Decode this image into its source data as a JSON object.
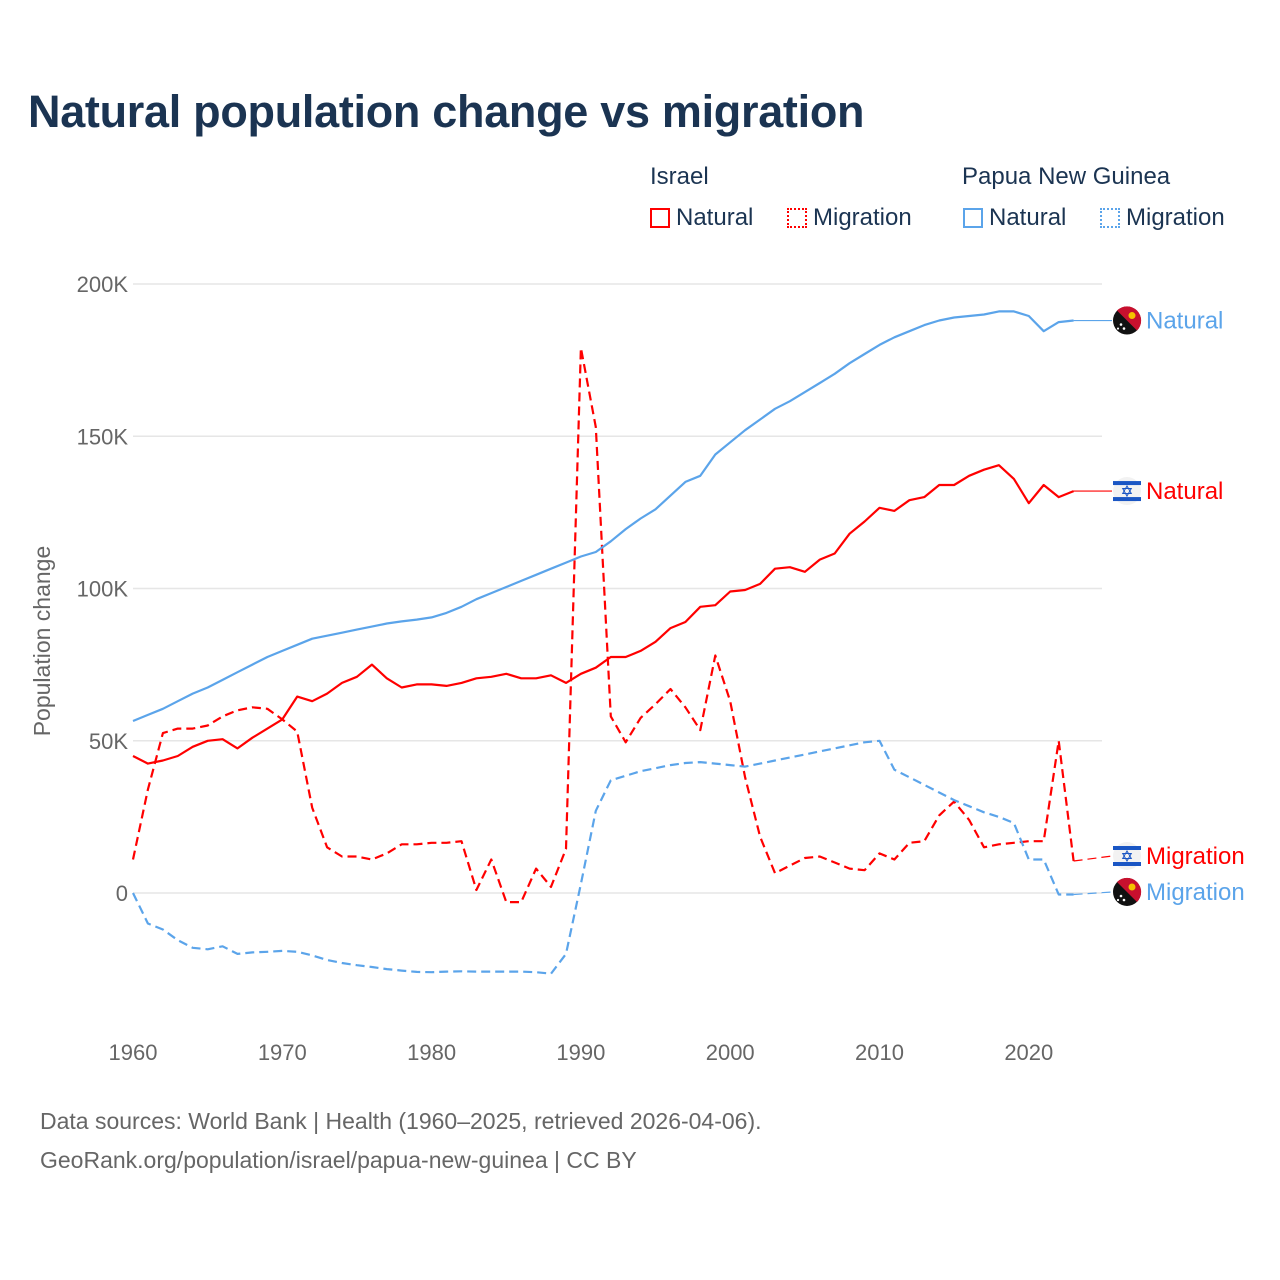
{
  "title": "Natural population change vs migration",
  "legend": {
    "groups": [
      {
        "name": "Israel",
        "items": [
          {
            "label": "Natural",
            "style": "solid"
          },
          {
            "label": "Migration",
            "style": "dotted"
          }
        ],
        "color": "#ff0000"
      },
      {
        "name": "Papua New Guinea",
        "items": [
          {
            "label": "Natural",
            "style": "solid"
          },
          {
            "label": "Migration",
            "style": "dotted"
          }
        ],
        "color": "#5ba4ea"
      }
    ]
  },
  "footer": {
    "line1": "Data sources: World Bank | Health (1960–2025, retrieved 2026-04-06).",
    "line2": "GeoRank.org/population/israel/papua-new-guinea | CC BY"
  },
  "chart_data": {
    "type": "line",
    "title": "Natural population change vs migration",
    "xlabel": "",
    "ylabel": "Population change",
    "xlim": [
      1960,
      2025
    ],
    "ylim": [
      -40000,
      200000
    ],
    "x_ticks": [
      1960,
      1970,
      1980,
      1990,
      2000,
      2010,
      2020
    ],
    "x_tick_labels": [
      "1960",
      "1970",
      "1980",
      "1990",
      "2000",
      "2010",
      "2020"
    ],
    "y_ticks": [
      0,
      50000,
      100000,
      150000,
      200000
    ],
    "y_tick_labels": [
      "0",
      "50K",
      "100K",
      "150K",
      "200K"
    ],
    "grid": true,
    "legend_position": "top-right",
    "x_start": 1960,
    "series": [
      {
        "name": "Israel Natural",
        "end_label": "Natural",
        "country": "Israel",
        "color": "#ff0000",
        "dash": false,
        "values": [
          45000,
          42500,
          43500,
          45000,
          48000,
          50000,
          50500,
          47500,
          51000,
          54000,
          57000,
          64500,
          63000,
          65500,
          69000,
          71000,
          75000,
          70500,
          67500,
          68500,
          68500,
          68000,
          69000,
          70500,
          71000,
          72000,
          70500,
          70500,
          71500,
          69000,
          72000,
          74000,
          77500,
          77500,
          79500,
          82500,
          87000,
          89000,
          94000,
          94500,
          99000,
          99500,
          101500,
          106500,
          107000,
          105500,
          109500,
          111500,
          118000,
          122000,
          126500,
          125500,
          129000,
          130000,
          134000,
          134000,
          137000,
          139000,
          140500,
          136000,
          128000,
          134000,
          130000,
          132000
        ]
      },
      {
        "name": "Israel Migration",
        "end_label": "Migration",
        "country": "Israel",
        "color": "#ff0000",
        "dash": true,
        "values": [
          11000,
          34000,
          52500,
          54000,
          54000,
          55000,
          58000,
          60000,
          61000,
          60500,
          57000,
          53000,
          28000,
          15000,
          12000,
          12000,
          11000,
          13000,
          16000,
          16000,
          16500,
          16500,
          17000,
          1000,
          11000,
          -3000,
          -3000,
          8000,
          2000,
          14500,
          179000,
          153000,
          58000,
          49500,
          57500,
          62000,
          67000,
          61000,
          53500,
          78000,
          63000,
          38000,
          18500,
          6500,
          9000,
          11500,
          12000,
          10000,
          8000,
          7500,
          13000,
          11000,
          16500,
          17000,
          25500,
          30000,
          24000,
          15000,
          16000,
          16500,
          17000,
          17000,
          50000,
          10500
        ]
      },
      {
        "name": "Papua New Guinea Natural",
        "end_label": "Natural",
        "country": "Papua New Guinea",
        "color": "#5ba4ea",
        "dash": false,
        "values": [
          56500,
          58500,
          60500,
          63000,
          65500,
          67500,
          70000,
          72500,
          75000,
          77500,
          79500,
          81500,
          83500,
          84500,
          85500,
          86500,
          87500,
          88500,
          89200,
          89800,
          90500,
          92000,
          94000,
          96500,
          98500,
          100500,
          102500,
          104500,
          106500,
          108500,
          110500,
          112000,
          115500,
          119500,
          123000,
          126000,
          130500,
          135000,
          137000,
          144000,
          148000,
          152000,
          155500,
          159000,
          161500,
          164500,
          167500,
          170500,
          174000,
          177000,
          180000,
          182500,
          184500,
          186500,
          188000,
          189000,
          189500,
          190000,
          191000,
          191000,
          189500,
          184500,
          187500,
          188000
        ]
      },
      {
        "name": "Papua New Guinea Migration",
        "end_label": "Migration",
        "country": "Papua New Guinea",
        "color": "#5ba4ea",
        "dash": true,
        "values": [
          0,
          -10000,
          -12000,
          -15500,
          -18000,
          -18500,
          -17500,
          -20000,
          -19500,
          -19300,
          -19000,
          -19300,
          -20500,
          -22000,
          -23000,
          -23700,
          -24300,
          -25000,
          -25500,
          -25900,
          -26000,
          -25800,
          -25700,
          -25800,
          -25800,
          -25800,
          -25800,
          -26000,
          -26500,
          -20000,
          3000,
          27000,
          37000,
          38500,
          40000,
          41000,
          42000,
          42700,
          43000,
          42500,
          42000,
          41500,
          42500,
          43500,
          44500,
          45500,
          46500,
          47500,
          48500,
          49500,
          50000,
          40500,
          38000,
          35500,
          33000,
          30500,
          28500,
          26500,
          25000,
          23000,
          11000,
          11000,
          -500,
          -500
        ]
      }
    ]
  }
}
